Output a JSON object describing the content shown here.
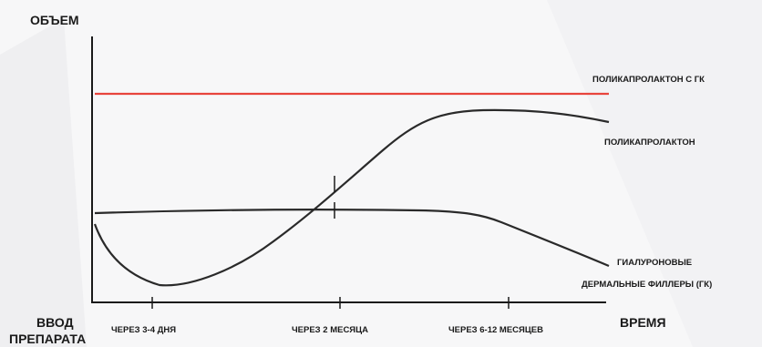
{
  "chart_data": {
    "type": "line",
    "y_axis_title": "ОБЪЕМ",
    "x_axis_title": "ВРЕМЯ",
    "origin_label": [
      "ВВОД",
      "ПРЕПАРАТА"
    ],
    "x_ticks": [
      "ЧЕРЕЗ 3-4 ДНЯ",
      "ЧЕРЕЗ 2 МЕСЯЦА",
      "ЧЕРЕЗ 6-12 МЕСЯЦЕВ"
    ],
    "series": [
      {
        "name": "ПОЛИКАПРОЛАКТОН С ГК",
        "color": "#e8453c",
        "shape": "flat-high"
      },
      {
        "name": "ПОЛИКАПРОЛАКТОН",
        "color": "#2a2a2a",
        "shape": "dip-then-rise-plateau"
      },
      {
        "name": "ГИАЛУРОНОВЫЕ ДЕРМАЛЬНЫЕ ФИЛЛЕРЫ (ГК)",
        "name_lines": [
          "ГИАЛУРОНОВЫЕ",
          "ДЕРМАЛЬНЫЕ ФИЛЛЕРЫ (ГК)"
        ],
        "color": "#2a2a2a",
        "shape": "flat-then-decline"
      }
    ]
  }
}
